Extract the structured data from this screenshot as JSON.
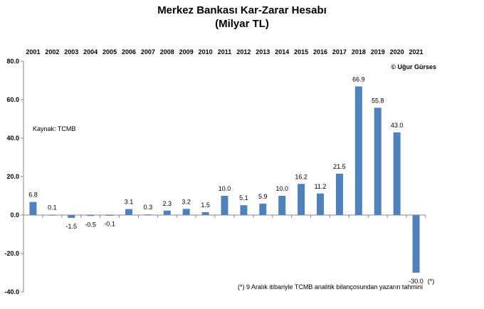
{
  "title": "Merkez Bankası Kar-Zarar Hesabı",
  "subtitle": "(Milyar TL)",
  "source_note": "Kaynak: TCMB",
  "copyright": "© Uğur Gürses",
  "footnote": "(*) 9 Aralık itibariyle TCMB analitik bilançosundan yazarın tahmini",
  "chart_data": {
    "type": "bar",
    "categories": [
      "2001",
      "2002",
      "2003",
      "2004",
      "2005",
      "2006",
      "2007",
      "2008",
      "2009",
      "2010",
      "2011",
      "2012",
      "2013",
      "2014",
      "2015",
      "2016",
      "2017",
      "2018",
      "2019",
      "2020",
      "2021"
    ],
    "values": [
      6.8,
      0.1,
      -1.5,
      -0.5,
      -0.1,
      3.1,
      0.3,
      2.3,
      3.2,
      1.5,
      10.0,
      5.1,
      5.9,
      10.0,
      16.2,
      11.2,
      21.5,
      66.9,
      55.8,
      43.0,
      -30.0
    ],
    "value_labels": [
      "6.8",
      "0.1",
      "-1.5",
      "-0.5",
      "-0.1",
      "3.1",
      "0.3",
      "2.3",
      "3.2",
      "1.5",
      "10.0",
      "5.1",
      "5.9",
      "10.0",
      "16.2",
      "11.2",
      "21.5",
      "66.9",
      "55.8",
      "43.0",
      "-30.0"
    ],
    "ylim": [
      -40,
      80
    ],
    "yticks": [
      80,
      60,
      40,
      20,
      0,
      -20,
      -40
    ],
    "ytick_labels": [
      "80.0",
      "60.0",
      "40.0",
      "20.0",
      "0.0",
      "-20.0",
      "-40.0"
    ],
    "last_label_suffix": "(*)",
    "bar_color": "#4f81bd",
    "axis_color": "#888888",
    "grid": false
  }
}
